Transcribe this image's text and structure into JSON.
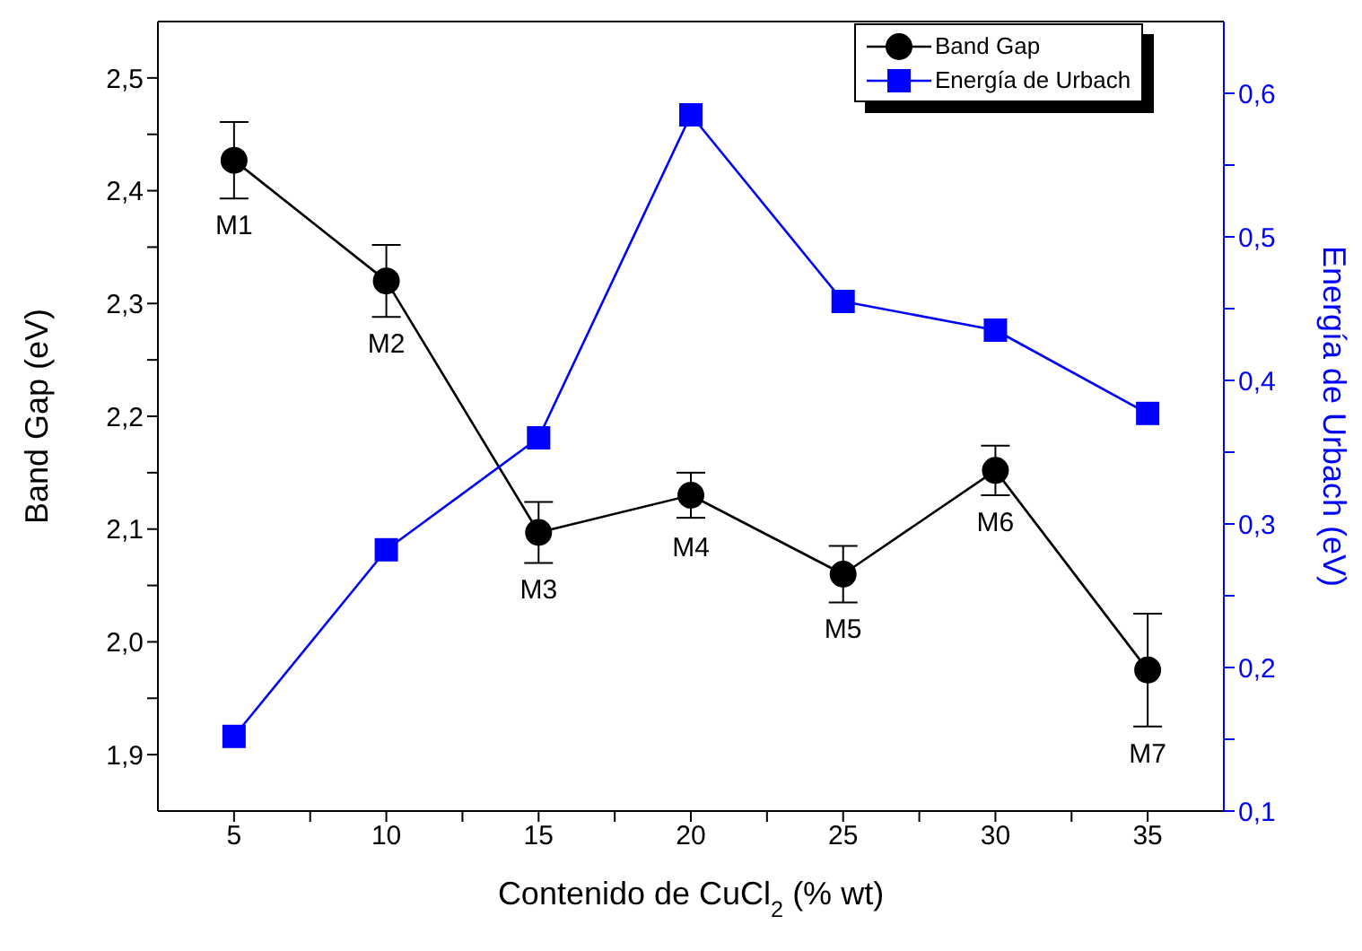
{
  "chart_data": {
    "type": "line",
    "xlabel": "Contenido de CuCl$_{2}$ (% wt)",
    "ylabel": "Band Gap (eV)",
    "y2label": "Energía de Urbach (eV)",
    "x": [
      5,
      10,
      15,
      20,
      25,
      30,
      35
    ],
    "series": [
      {
        "name": "Band Gap",
        "color": "#000000",
        "marker": "circle",
        "values": [
          2.427,
          2.32,
          2.097,
          2.13,
          2.06,
          2.152,
          1.975
        ],
        "errors": [
          0.034,
          0.032,
          0.027,
          0.02,
          0.025,
          0.022,
          0.05
        ]
      },
      {
        "name": "Energía de Urbach",
        "color": "#0000ff",
        "marker": "square",
        "axis": "y2",
        "values": [
          0.152,
          0.282,
          0.36,
          0.585,
          0.455,
          0.435,
          0.377
        ]
      }
    ],
    "xlim": [
      2.5,
      37.5
    ],
    "xticks": [
      5,
      {
        "value": 7.5,
        "label": null
      },
      10,
      {
        "value": 12.5,
        "label": null
      },
      15,
      {
        "value": 17.5,
        "label": null
      },
      20,
      {
        "value": 22.5,
        "label": null
      },
      25,
      {
        "value": 27.5,
        "label": null
      },
      30,
      {
        "value": 32.5,
        "label": null
      },
      35
    ],
    "ylim": [
      1.85,
      2.55
    ],
    "yticks": [
      {
        "value": 1.9,
        "label": "1,9"
      },
      {
        "value": 1.95,
        "label": null
      },
      {
        "value": 2.0,
        "label": "2,0"
      },
      {
        "value": 2.05,
        "label": null
      },
      {
        "value": 2.1,
        "label": "2,1"
      },
      {
        "value": 2.15,
        "label": null
      },
      {
        "value": 2.2,
        "label": "2,2"
      },
      {
        "value": 2.25,
        "label": null
      },
      {
        "value": 2.3,
        "label": "2,3"
      },
      {
        "value": 2.35,
        "label": null
      },
      {
        "value": 2.4,
        "label": "2,4"
      },
      {
        "value": 2.45,
        "label": null
      },
      {
        "value": 2.5,
        "label": "2,5"
      }
    ],
    "y2lim": [
      0.1,
      0.65
    ],
    "y2ticks": [
      {
        "value": 0.1,
        "label": "0,1"
      },
      {
        "value": 0.15,
        "label": null
      },
      {
        "value": 0.2,
        "label": "0,2"
      },
      {
        "value": 0.25,
        "label": null
      },
      {
        "value": 0.3,
        "label": "0,3"
      },
      {
        "value": 0.35,
        "label": null
      },
      {
        "value": 0.4,
        "label": "0,4"
      },
      {
        "value": 0.45,
        "label": null
      },
      {
        "value": 0.5,
        "label": "0,5"
      },
      {
        "value": 0.55,
        "label": null
      },
      {
        "value": 0.6,
        "label": "0,6"
      }
    ],
    "annotations": [
      {
        "text": "M1",
        "x": 5,
        "y": 2.427
      },
      {
        "text": "M2",
        "x": 10,
        "y": 2.32
      },
      {
        "text": "M3",
        "x": 15,
        "y": 2.097
      },
      {
        "text": "M4",
        "x": 20,
        "y": 2.13
      },
      {
        "text": "M5",
        "x": 25,
        "y": 2.06
      },
      {
        "text": "M6",
        "x": 30,
        "y": 2.152
      },
      {
        "text": "M7",
        "x": 35,
        "y": 1.975
      }
    ],
    "legend": "top right",
    "grid": false
  }
}
